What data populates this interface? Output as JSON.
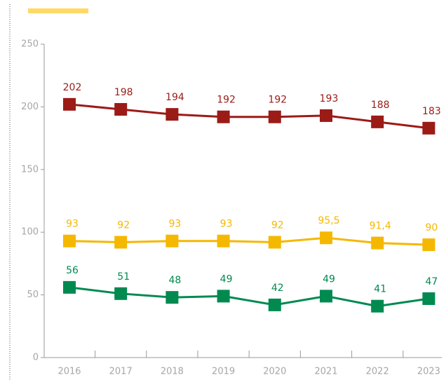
{
  "chart_data": {
    "type": "line",
    "categories": [
      "2016",
      "2017",
      "2018",
      "2019",
      "2020",
      "2021",
      "2022",
      "2023"
    ],
    "series": [
      {
        "color": "#9b1b17",
        "values": [
          202,
          198,
          194,
          192,
          192,
          193,
          188,
          183
        ]
      },
      {
        "color": "#f5b800",
        "values": [
          93,
          92,
          93,
          93,
          92,
          95.5,
          91.4,
          90
        ],
        "value_labels": [
          "93",
          "92",
          "93",
          "93",
          "92",
          "95,5",
          "91,4",
          "90"
        ]
      },
      {
        "color": "#008a50",
        "values": [
          56,
          51,
          48,
          49,
          42,
          49,
          41,
          47
        ]
      }
    ],
    "ylim": [
      0,
      250
    ],
    "yticks": [
      0,
      50,
      100,
      150,
      200,
      250
    ]
  }
}
